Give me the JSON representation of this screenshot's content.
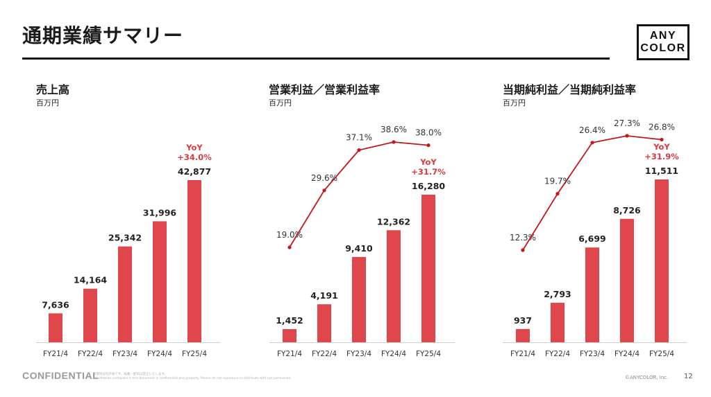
{
  "page": {
    "title": "通期業績サマリー",
    "logo_line1": "ANY",
    "logo_line2": "COLOR",
    "footer_confidential": "CONFIDENTIAL",
    "footer_note_ja": "本資料は社外秘です。転載・配布は禁止いたします。",
    "footer_note_en": "Information contained in this document is confidential and property. Please do not reproduce or distribute with out permission.",
    "footer_copyright": "©ANYCOLOR, Inc.",
    "page_number": "12"
  },
  "chart_data": [
    {
      "type": "bar",
      "title": "売上高",
      "unit": "百万円",
      "categories": [
        "FY21/4",
        "FY22/4",
        "FY23/4",
        "FY24/4",
        "FY25/4"
      ],
      "values": [
        7636,
        14164,
        25342,
        31996,
        42877
      ],
      "value_labels": [
        "7,636",
        "14,164",
        "25,342",
        "31,996",
        "42,877"
      ],
      "yoy_label": "YoY",
      "yoy_value": "+34.0%",
      "bar_color": "#e0474c"
    },
    {
      "type": "bar",
      "title": "営業利益／営業利益率",
      "unit": "百万円",
      "categories": [
        "FY21/4",
        "FY22/4",
        "FY23/4",
        "FY24/4",
        "FY25/4"
      ],
      "values": [
        1452,
        4191,
        9410,
        12362,
        16280
      ],
      "value_labels": [
        "1,452",
        "4,191",
        "9,410",
        "12,362",
        "16,280"
      ],
      "line_values": [
        19.0,
        29.6,
        37.1,
        38.6,
        38.0
      ],
      "line_labels": [
        "19.0%",
        "29.6%",
        "37.1%",
        "38.6%",
        "38.0%"
      ],
      "yoy_label": "YoY",
      "yoy_value": "+31.7%",
      "bar_color": "#e0474c",
      "line_color": "#c4161c"
    },
    {
      "type": "bar",
      "title": "当期純利益／当期純利益率",
      "unit": "百万円",
      "categories": [
        "FY21/4",
        "FY22/4",
        "FY23/4",
        "FY24/4",
        "FY25/4"
      ],
      "values": [
        937,
        2793,
        6699,
        8726,
        11511
      ],
      "value_labels": [
        "937",
        "2,793",
        "6,699",
        "8,726",
        "11,511"
      ],
      "line_values": [
        12.3,
        19.7,
        26.4,
        27.3,
        26.8
      ],
      "line_labels": [
        "12.3%",
        "19.7%",
        "26.4%",
        "27.3%",
        "26.8%"
      ],
      "yoy_label": "YoY",
      "yoy_value": "+31.9%",
      "bar_color": "#e0474c",
      "line_color": "#c4161c"
    }
  ]
}
